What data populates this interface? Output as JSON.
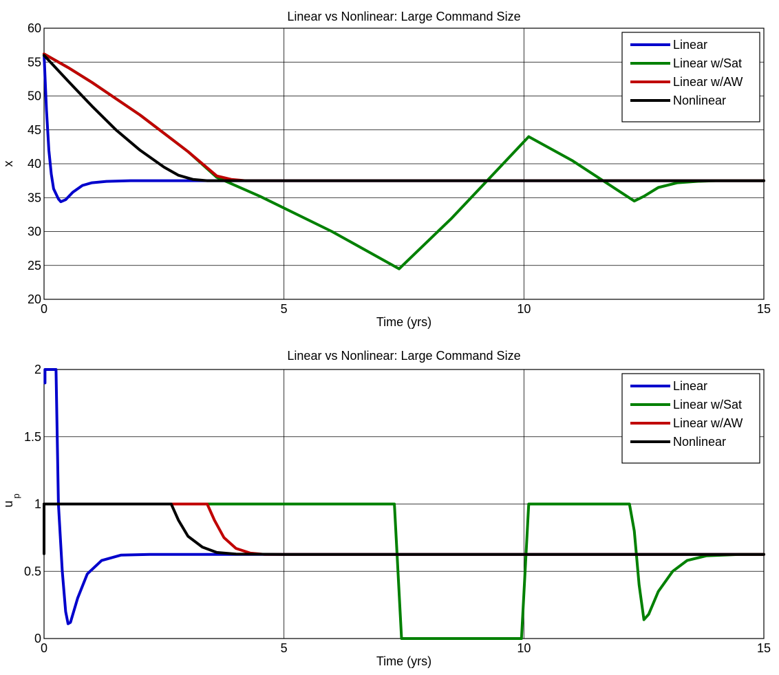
{
  "chart_data": [
    {
      "type": "line",
      "title": "Linear vs Nonlinear: Large Command Size",
      "xlabel": "Time (yrs)",
      "ylabel": "x",
      "ylabel_sub": "",
      "xlim": [
        0,
        15
      ],
      "ylim": [
        20,
        60
      ],
      "xticks": [
        0,
        5,
        10,
        15
      ],
      "yticks": [
        20,
        25,
        30,
        35,
        40,
        45,
        50,
        55,
        60
      ],
      "xtick_labels": [
        "0",
        "5",
        "10",
        "15"
      ],
      "ytick_labels": [
        "20",
        "25",
        "30",
        "35",
        "40",
        "45",
        "50",
        "55",
        "60"
      ],
      "grid": true,
      "legend_position": "top-right",
      "series": [
        {
          "name": "Linear",
          "color": "#0000cc",
          "points": [
            [
              0,
              56.2
            ],
            [
              0.05,
              48
            ],
            [
              0.1,
              42
            ],
            [
              0.15,
              38.5
            ],
            [
              0.2,
              36.3
            ],
            [
              0.3,
              34.8
            ],
            [
              0.35,
              34.4
            ],
            [
              0.45,
              34.7
            ],
            [
              0.6,
              35.8
            ],
            [
              0.8,
              36.8
            ],
            [
              1.0,
              37.2
            ],
            [
              1.3,
              37.4
            ],
            [
              1.8,
              37.5
            ],
            [
              2.5,
              37.5
            ],
            [
              3.5,
              37.5
            ],
            [
              5,
              37.5
            ],
            [
              7.5,
              37.5
            ],
            [
              10,
              37.5
            ],
            [
              15,
              37.5
            ]
          ]
        },
        {
          "name": "Linear w/Sat",
          "color": "#008000",
          "points": [
            [
              0,
              56.2
            ],
            [
              0.5,
              54.2
            ],
            [
              1,
              52.0
            ],
            [
              2,
              47.2
            ],
            [
              3,
              41.8
            ],
            [
              3.6,
              38.0
            ],
            [
              4.5,
              35.2
            ],
            [
              6,
              30.0
            ],
            [
              7.4,
              24.5
            ],
            [
              8.5,
              32.0
            ],
            [
              10.1,
              44.0
            ],
            [
              11,
              40.5
            ],
            [
              12.3,
              34.5
            ],
            [
              12.5,
              35.2
            ],
            [
              12.8,
              36.5
            ],
            [
              13.2,
              37.2
            ],
            [
              13.6,
              37.4
            ],
            [
              14,
              37.5
            ],
            [
              15,
              37.5
            ]
          ]
        },
        {
          "name": "Linear w/AW",
          "color": "#c00000",
          "points": [
            [
              0,
              56.2
            ],
            [
              0.5,
              54.2
            ],
            [
              1,
              52.0
            ],
            [
              2,
              47.2
            ],
            [
              3,
              41.8
            ],
            [
              3.6,
              38.2
            ],
            [
              3.9,
              37.7
            ],
            [
              4.2,
              37.5
            ],
            [
              5,
              37.5
            ],
            [
              15,
              37.5
            ]
          ]
        },
        {
          "name": "Nonlinear",
          "color": "#000000",
          "points": [
            [
              0,
              56.0
            ],
            [
              0.5,
              52.2
            ],
            [
              1,
              48.5
            ],
            [
              1.5,
              45.0
            ],
            [
              2,
              42.0
            ],
            [
              2.5,
              39.5
            ],
            [
              2.8,
              38.3
            ],
            [
              3.1,
              37.7
            ],
            [
              3.4,
              37.5
            ],
            [
              5,
              37.5
            ],
            [
              10,
              37.5
            ],
            [
              15,
              37.5
            ]
          ]
        }
      ]
    },
    {
      "type": "line",
      "title": "Linear vs Nonlinear: Large Command Size",
      "xlabel": "Time (yrs)",
      "ylabel": "u",
      "ylabel_sub": "p",
      "xlim": [
        0,
        15
      ],
      "ylim": [
        0,
        2
      ],
      "xticks": [
        0,
        5,
        10,
        15
      ],
      "yticks": [
        0,
        0.5,
        1,
        1.5,
        2
      ],
      "xtick_labels": [
        "0",
        "5",
        "10",
        "15"
      ],
      "ytick_labels": [
        "0",
        "0.5",
        "1",
        "1.5",
        "2"
      ],
      "grid": true,
      "legend_position": "top-right",
      "series": [
        {
          "name": "Linear",
          "color": "#0000cc",
          "points": [
            [
              0.02,
              1.9
            ],
            [
              0.02,
              2.0
            ],
            [
              0.25,
              2.0
            ],
            [
              0.3,
              1.0
            ],
            [
              0.38,
              0.5
            ],
            [
              0.45,
              0.2
            ],
            [
              0.5,
              0.11
            ],
            [
              0.55,
              0.12
            ],
            [
              0.7,
              0.3
            ],
            [
              0.9,
              0.48
            ],
            [
              1.2,
              0.58
            ],
            [
              1.6,
              0.62
            ],
            [
              2.2,
              0.625
            ],
            [
              3,
              0.625
            ],
            [
              5,
              0.625
            ],
            [
              15,
              0.625
            ]
          ]
        },
        {
          "name": "Linear w/Sat",
          "color": "#008000",
          "points": [
            [
              0,
              1.0
            ],
            [
              7.3,
              1.0
            ],
            [
              7.45,
              0
            ],
            [
              9.95,
              0
            ],
            [
              10.1,
              1.0
            ],
            [
              12.2,
              1.0
            ],
            [
              12.3,
              0.8
            ],
            [
              12.4,
              0.4
            ],
            [
              12.5,
              0.14
            ],
            [
              12.6,
              0.18
            ],
            [
              12.8,
              0.35
            ],
            [
              13.1,
              0.5
            ],
            [
              13.4,
              0.58
            ],
            [
              13.8,
              0.615
            ],
            [
              14.5,
              0.625
            ],
            [
              15,
              0.625
            ]
          ]
        },
        {
          "name": "Linear w/AW",
          "color": "#c00000",
          "points": [
            [
              0,
              1.0
            ],
            [
              3.4,
              1.0
            ],
            [
              3.55,
              0.88
            ],
            [
              3.75,
              0.75
            ],
            [
              4.0,
              0.67
            ],
            [
              4.3,
              0.635
            ],
            [
              4.6,
              0.625
            ],
            [
              5,
              0.625
            ],
            [
              15,
              0.625
            ]
          ]
        },
        {
          "name": "Nonlinear",
          "color": "#000000",
          "points": [
            [
              0,
              0.63
            ],
            [
              0,
              1.0
            ],
            [
              2.65,
              1.0
            ],
            [
              2.8,
              0.88
            ],
            [
              3.0,
              0.76
            ],
            [
              3.3,
              0.68
            ],
            [
              3.6,
              0.64
            ],
            [
              4.0,
              0.628
            ],
            [
              5,
              0.625
            ],
            [
              15,
              0.625
            ]
          ]
        }
      ]
    }
  ]
}
